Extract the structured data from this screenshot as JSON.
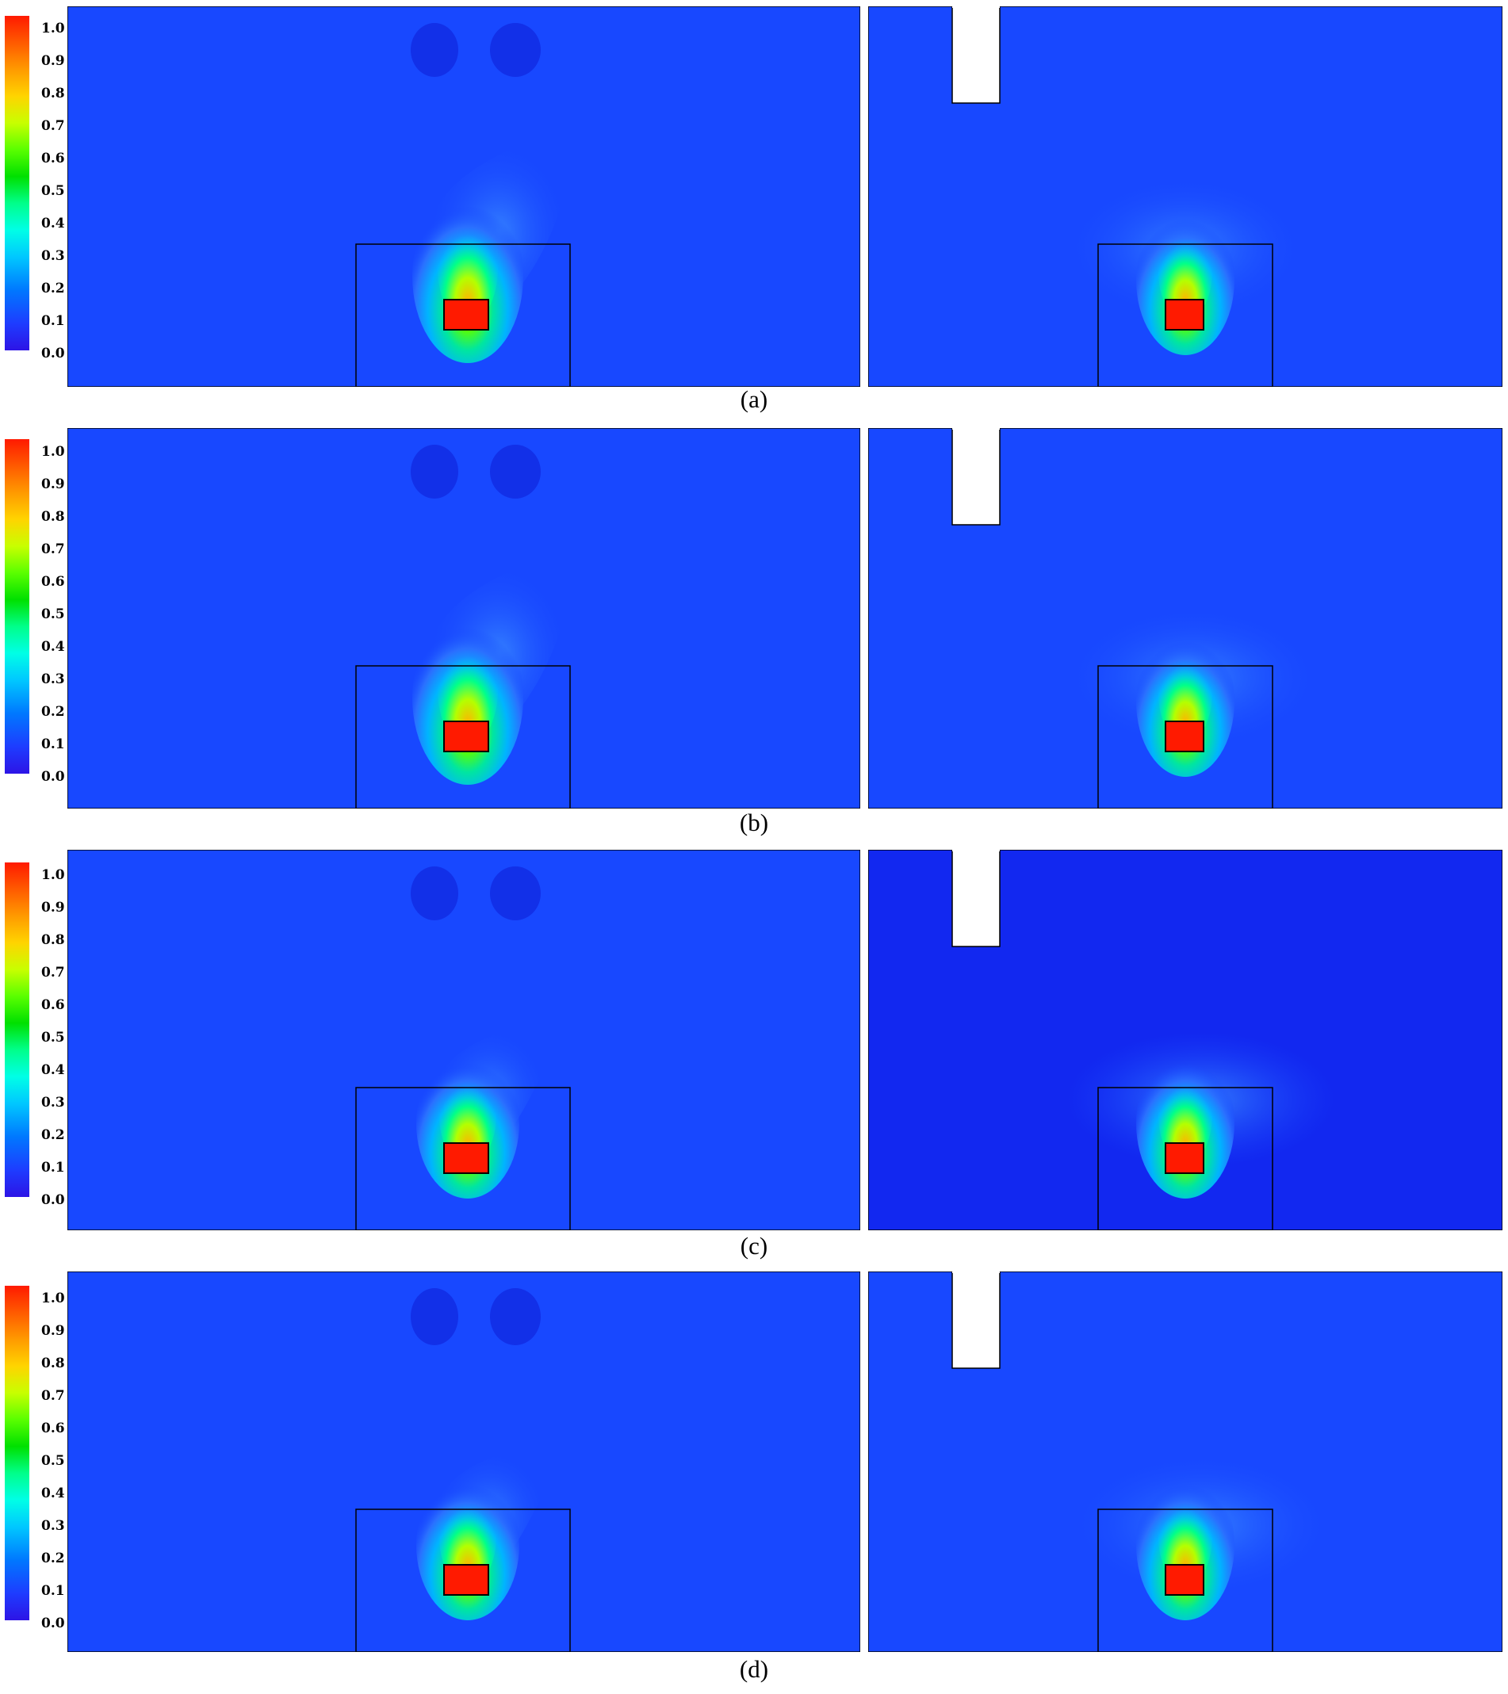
{
  "figure": {
    "colorbar": {
      "ticks": [
        "1.0",
        "0.9",
        "0.8",
        "0.7",
        "0.6",
        "0.5",
        "0.4",
        "0.3",
        "0.2",
        "0.1",
        "0.0"
      ],
      "colors": [
        "#ff1a00",
        "#ff9a00",
        "#ffd400",
        "#5aff00",
        "#00ff8a",
        "#00ffe6",
        "#0078ff",
        "#2d14e6"
      ]
    },
    "background_color": "#1848ff",
    "panels": [
      {
        "label": "(a)"
      },
      {
        "label": "(b)"
      },
      {
        "label": "(c)"
      },
      {
        "label": "(d)"
      }
    ]
  }
}
